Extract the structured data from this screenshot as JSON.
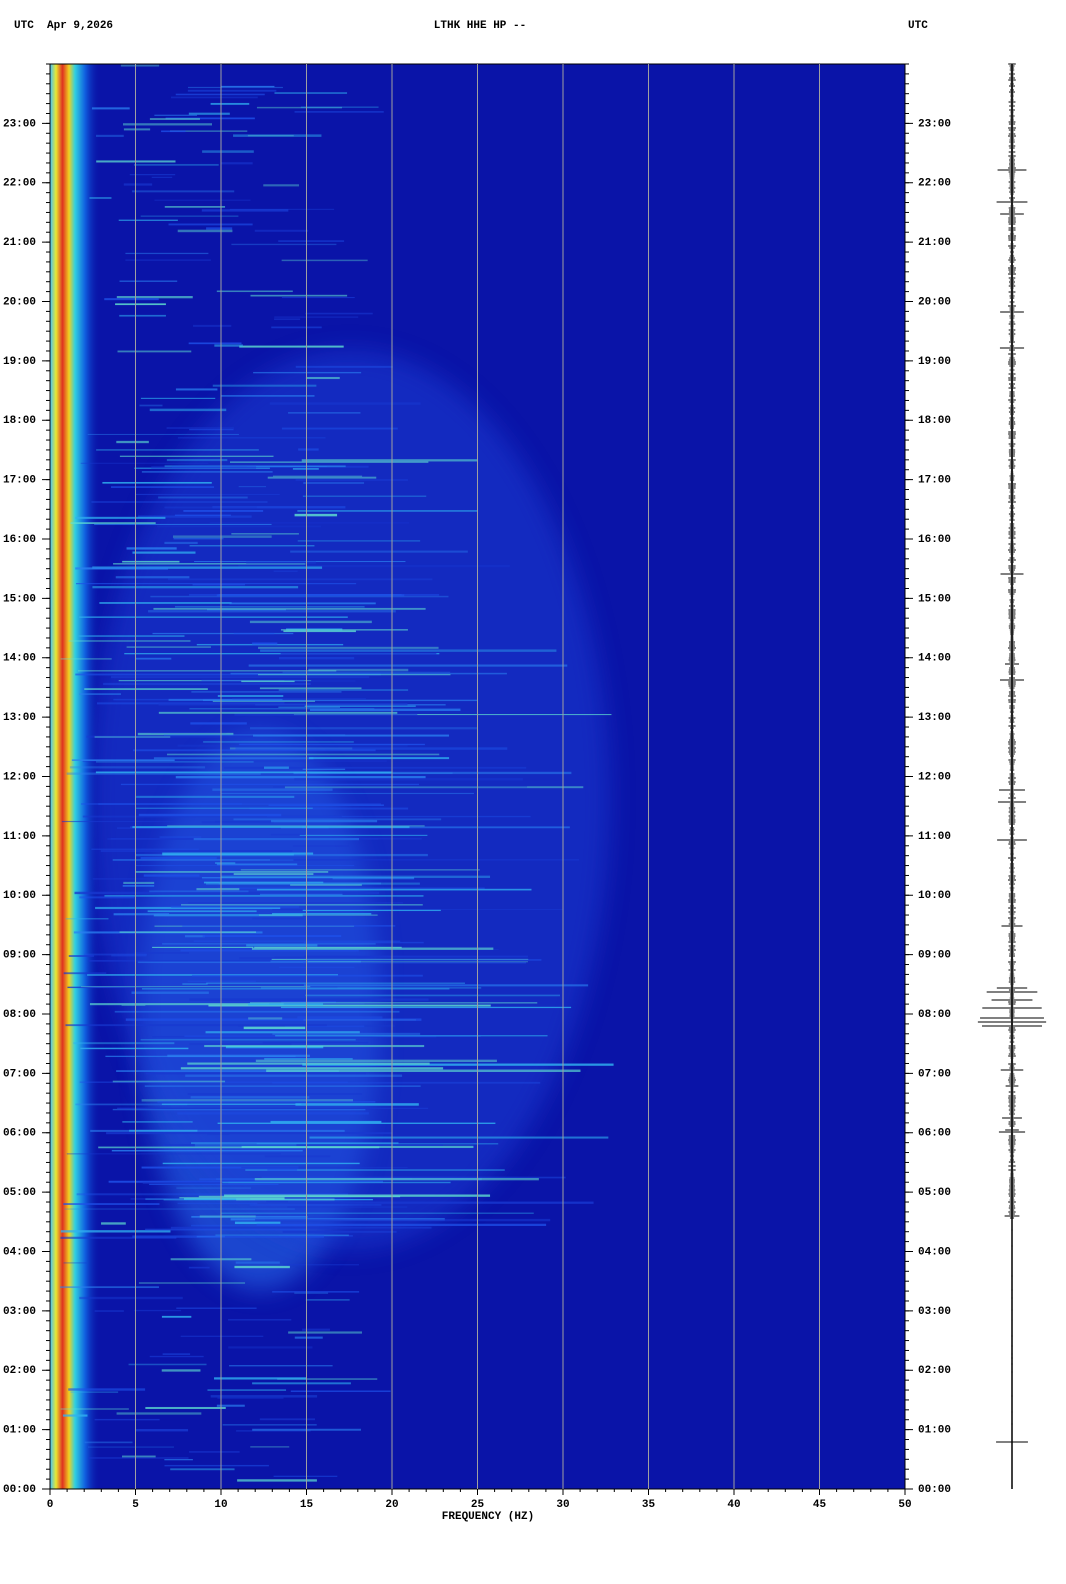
{
  "chart_data": {
    "type": "spectrogram",
    "header_left": "UTC  Apr 9,2026",
    "title": "LTHK HHE HP --",
    "header_right": "UTC",
    "x_label": "FREQUENCY (HZ)",
    "xlim": [
      0,
      50
    ],
    "xticks": [
      0,
      5,
      10,
      15,
      20,
      25,
      30,
      35,
      40,
      45,
      50
    ],
    "ylim": [
      0,
      24
    ],
    "yticks": [
      {
        "value": 0,
        "label": "00:00"
      },
      {
        "value": 1,
        "label": "01:00"
      },
      {
        "value": 2,
        "label": "02:00"
      },
      {
        "value": 3,
        "label": "03:00"
      },
      {
        "value": 4,
        "label": "04:00"
      },
      {
        "value": 5,
        "label": "05:00"
      },
      {
        "value": 6,
        "label": "06:00"
      },
      {
        "value": 7,
        "label": "07:00"
      },
      {
        "value": 8,
        "label": "08:00"
      },
      {
        "value": 9,
        "label": "09:00"
      },
      {
        "value": 10,
        "label": "10:00"
      },
      {
        "value": 11,
        "label": "11:00"
      },
      {
        "value": 12,
        "label": "12:00"
      },
      {
        "value": 13,
        "label": "13:00"
      },
      {
        "value": 14,
        "label": "14:00"
      },
      {
        "value": 15,
        "label": "15:00"
      },
      {
        "value": 16,
        "label": "16:00"
      },
      {
        "value": 17,
        "label": "17:00"
      },
      {
        "value": 18,
        "label": "18:00"
      },
      {
        "value": 19,
        "label": "19:00"
      },
      {
        "value": 20,
        "label": "20:00"
      },
      {
        "value": 21,
        "label": "21:00"
      },
      {
        "value": 22,
        "label": "22:00"
      },
      {
        "value": 23,
        "label": "23:00"
      }
    ],
    "grid": true,
    "grid_color": "#a0a0a0"
  }
}
